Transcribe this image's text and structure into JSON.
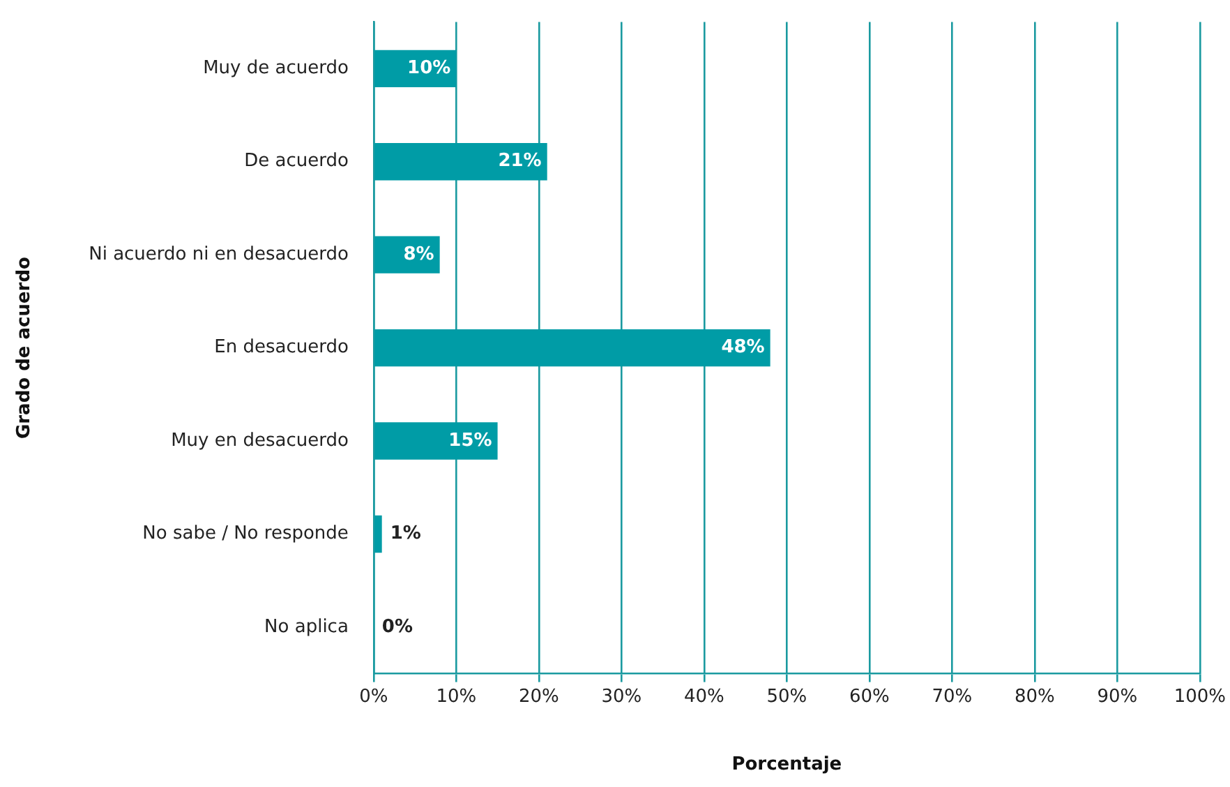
{
  "chart_data": {
    "type": "bar",
    "orientation": "horizontal",
    "xlabel": "Porcentaje",
    "ylabel": "Grado de acuerdo",
    "categories": [
      "Muy de acuerdo",
      "De acuerdo",
      "Ni acuerdo ni en desacuerdo",
      "En desacuerdo",
      "Muy en desacuerdo",
      "No sabe / No responde",
      "No aplica"
    ],
    "values": [
      10,
      21,
      8,
      48,
      15,
      1,
      0
    ],
    "value_labels": [
      "10%",
      "21%",
      "8%",
      "48%",
      "15%",
      "1%",
      "0%"
    ],
    "color": "#009ca6",
    "xlim": [
      0,
      100
    ],
    "xticks": [
      {
        "value": 0,
        "label": "0%"
      },
      {
        "value": 10,
        "label": "10%"
      },
      {
        "value": 20,
        "label": "20%"
      },
      {
        "value": 30,
        "label": "30%"
      },
      {
        "value": 40,
        "label": "40%"
      },
      {
        "value": 50,
        "label": "50%"
      },
      {
        "value": 60,
        "label": "60%"
      },
      {
        "value": 70,
        "label": "70%"
      },
      {
        "value": 80,
        "label": "80%"
      },
      {
        "value": 90,
        "label": "90%"
      },
      {
        "value": 100,
        "label": "100%"
      }
    ],
    "grid": "x",
    "legend": false
  }
}
